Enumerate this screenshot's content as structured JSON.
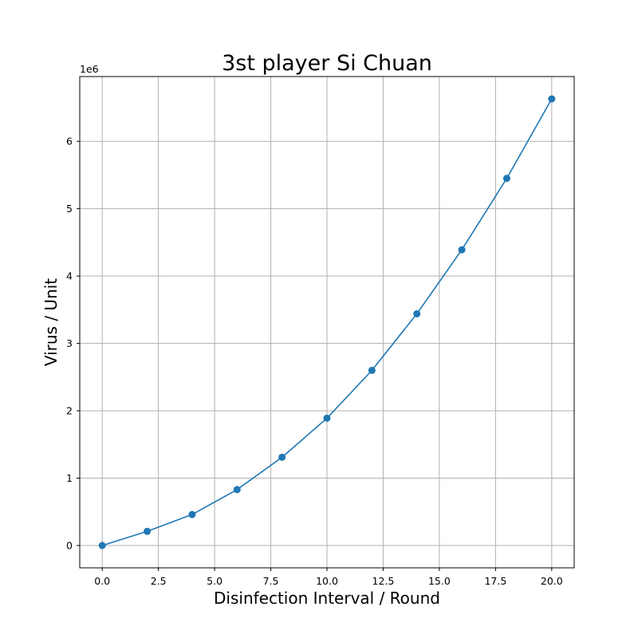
{
  "chart_data": {
    "type": "line",
    "title": "3st player Si Chuan",
    "xlabel": "Disinfection Interval / Round",
    "ylabel": "Virus / Unit",
    "y_offset_label": "1e6",
    "x": [
      0,
      2,
      4,
      6,
      8,
      10,
      12,
      14,
      16,
      18,
      20
    ],
    "series": [
      {
        "values": [
          0,
          210000,
          460000,
          830000,
          1310000,
          1890000,
          2600000,
          3440000,
          4390000,
          5450000,
          6630000
        ],
        "color": "#1f77b4",
        "marker": "circle"
      }
    ],
    "xlim": [
      -1,
      21
    ],
    "ylim": [
      -331500,
      6961500
    ],
    "x_ticks": [
      0,
      2.5,
      5,
      7.5,
      10,
      12.5,
      15,
      17.5,
      20
    ],
    "x_tick_labels": [
      "0.0",
      "2.5",
      "5.0",
      "7.5",
      "10.0",
      "12.5",
      "15.0",
      "17.5",
      "20.0"
    ],
    "y_ticks": [
      0,
      1000000,
      2000000,
      3000000,
      4000000,
      5000000,
      6000000
    ],
    "y_tick_labels": [
      "0",
      "1",
      "2",
      "3",
      "4",
      "5",
      "6"
    ],
    "grid": true
  }
}
